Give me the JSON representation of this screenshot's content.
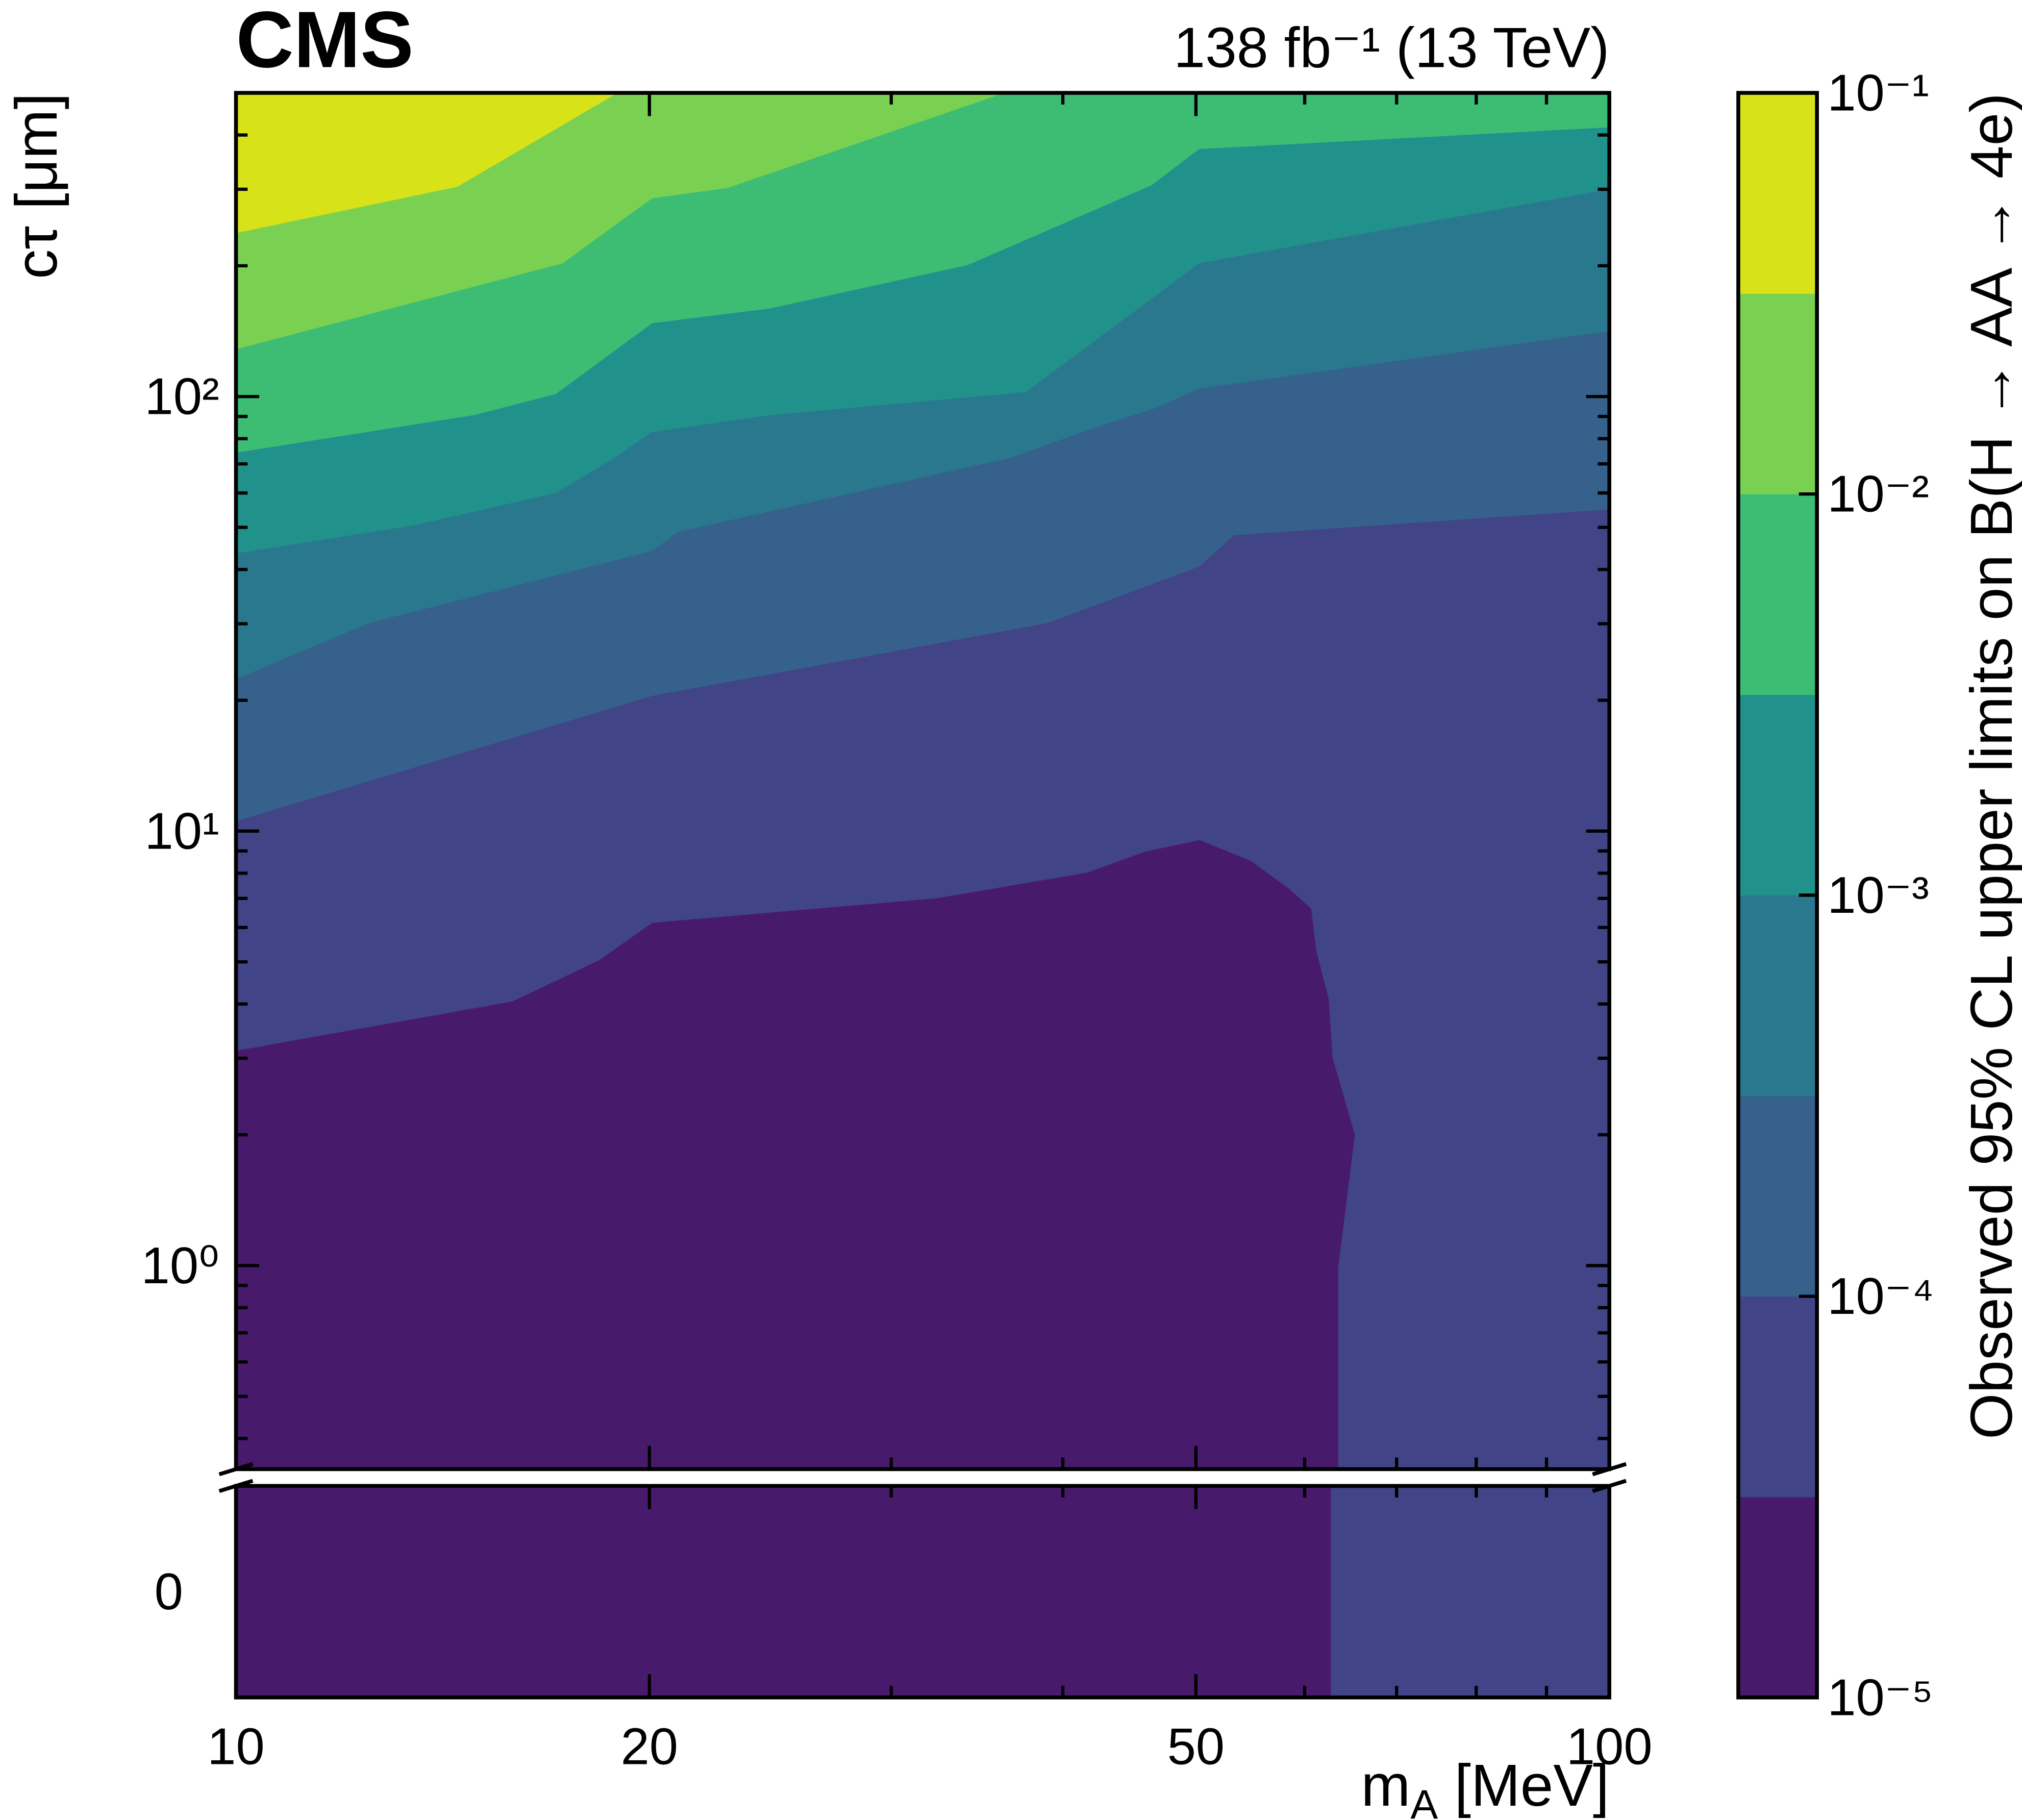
{
  "chart_data": {
    "type": "contour",
    "title": "CMS",
    "subtitle": "138 fb⁻¹ (13 TeV)",
    "xlabel": [
      "m",
      "A",
      " [MeV]"
    ],
    "ylabel": "cτ [μm]",
    "xscale": "log",
    "yscale": "log",
    "xlim": [
      10,
      100
    ],
    "ylim": [
      0.34,
      500
    ],
    "xticks": [
      10,
      20,
      50,
      100
    ],
    "xminor": [
      30,
      40,
      60,
      70,
      80,
      90
    ],
    "yticks": [
      {
        "value": 1,
        "label": "10⁰"
      },
      {
        "value": 10,
        "label": "10¹"
      },
      {
        "value": 100,
        "label": "10²"
      }
    ],
    "yminor": [
      0.4,
      0.5,
      0.6,
      0.7,
      0.8,
      0.9,
      2,
      3,
      4,
      5,
      6,
      7,
      8,
      9,
      20,
      30,
      40,
      50,
      60,
      70,
      80,
      90,
      200,
      300,
      400
    ],
    "contours": [
      {
        "x": [
          10,
          15.9,
          18.4,
          20.1,
          32.4,
          41.7,
          45.9,
          50.3,
          54.8,
          58.5,
          60.6,
          61.1,
          62.4,
          62.8,
          65.2,
          63.4,
          63.4
        ],
        "y": [
          3.11,
          4.04,
          5.03,
          6.13,
          6.98,
          8.0,
          8.93,
          9.5,
          8.51,
          7.32,
          6.61,
          5.31,
          4.1,
          3.01,
          2.0,
          0.99,
          0.34
        ]
      },
      {
        "x": [
          10,
          20.1,
          39.0,
          50.3,
          53.3,
          100
        ],
        "y": [
          10.5,
          20.4,
          30.0,
          40.5,
          47.8,
          54.8
        ]
      },
      {
        "x": [
          10,
          12.5,
          20.1,
          21.0,
          36.6,
          42.9,
          46.6,
          50.3,
          100
        ],
        "y": [
          22.3,
          30.0,
          44.0,
          48.7,
          72.0,
          86.0,
          93.4,
          104,
          141
        ]
      },
      {
        "x": [
          10,
          13.5,
          17.1,
          18.8,
          20.1,
          24.5,
          37.6,
          50.3,
          100
        ],
        "y": [
          43.4,
          50.4,
          59.8,
          71.5,
          82.6,
          90.3,
          102,
          202,
          299
        ]
      },
      {
        "x": [
          10,
          14.9,
          17.1,
          20.1,
          24.5,
          34.1,
          46.4,
          50.3,
          100
        ],
        "y": [
          74.0,
          90.3,
          101,
          147,
          159,
          200,
          305,
          370,
          415
        ]
      },
      {
        "x": [
          10,
          17.3,
          20.1,
          22.8,
          36.4,
          100
        ],
        "y": [
          128,
          202,
          285,
          301,
          500,
          500
        ]
      },
      {
        "x": [
          10,
          14.5,
          19.0,
          100
        ],
        "y": [
          237,
          303,
          500,
          500
        ]
      }
    ],
    "zero_panel": {
      "ytick": 0,
      "boundaries": [
        62.7
      ]
    },
    "colorbar": {
      "label": "Observed 95% CL upper limits on B(H → AA → 4e)",
      "scale": "log",
      "levels": [
        1e-05,
        3.162e-05,
        0.0001,
        0.0003162,
        0.001,
        0.003162,
        0.01,
        0.03162,
        0.1
      ],
      "colors": [
        "#481a6c",
        "#414487",
        "#35618c",
        "#2a788e",
        "#21918c",
        "#3dbc74",
        "#7ad151",
        "#d8e219"
      ],
      "ticks": [
        {
          "value": 1e-05,
          "label": "10⁻⁵"
        },
        {
          "value": 0.0001,
          "label": "10⁻⁴"
        },
        {
          "value": 0.001,
          "label": "10⁻³"
        },
        {
          "value": 0.01,
          "label": "10⁻²"
        },
        {
          "value": 0.1,
          "label": "10⁻¹"
        }
      ]
    }
  }
}
